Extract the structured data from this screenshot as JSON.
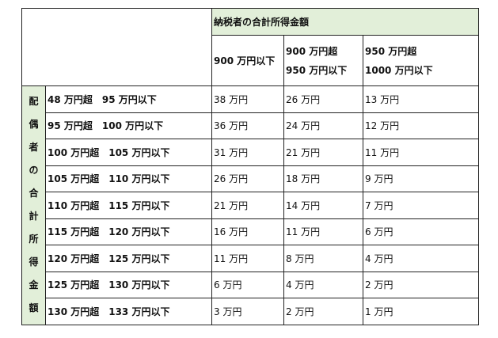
{
  "header": {
    "group_title": "納税者の合計所得金額",
    "columns": [
      {
        "line1": "900 万円以下",
        "line2": ""
      },
      {
        "line1": "900 万円超",
        "line2": "950 万円以下"
      },
      {
        "line1": "950 万円超",
        "line2": "1000 万円以下"
      }
    ]
  },
  "side_label": [
    "配",
    "偶",
    "者",
    "の",
    "合",
    "計",
    "所",
    "得",
    "金",
    "額"
  ],
  "rows": [
    {
      "label": "48 万円超　95 万円以下",
      "values": [
        "38 万円",
        "26 万円",
        "13 万円"
      ]
    },
    {
      "label": "95 万円超　100 万円以下",
      "values": [
        "36 万円",
        "24 万円",
        "12 万円"
      ]
    },
    {
      "label": "100 万円超　105 万円以下",
      "values": [
        "31 万円",
        "21 万円",
        "11 万円"
      ]
    },
    {
      "label": "105 万円超　110 万円以下",
      "values": [
        "26 万円",
        "18 万円",
        "9 万円"
      ]
    },
    {
      "label": "110 万円超　115 万円以下",
      "values": [
        "21 万円",
        "14 万円",
        "7 万円"
      ]
    },
    {
      "label": "115 万円超　120 万円以下",
      "values": [
        "16 万円",
        "11 万円",
        "6 万円"
      ]
    },
    {
      "label": "120 万円超　125 万円以下",
      "values": [
        "11 万円",
        "8 万円",
        "4 万円"
      ]
    },
    {
      "label": "125 万円超　130 万円以下",
      "values": [
        "6 万円",
        "4 万円",
        "2 万円"
      ]
    },
    {
      "label": "130 万円超　133 万円以下",
      "values": [
        "3 万円",
        "2 万円",
        "1 万円"
      ]
    }
  ],
  "colors": {
    "header_bg": "#e2efd9",
    "border": "#222222"
  }
}
